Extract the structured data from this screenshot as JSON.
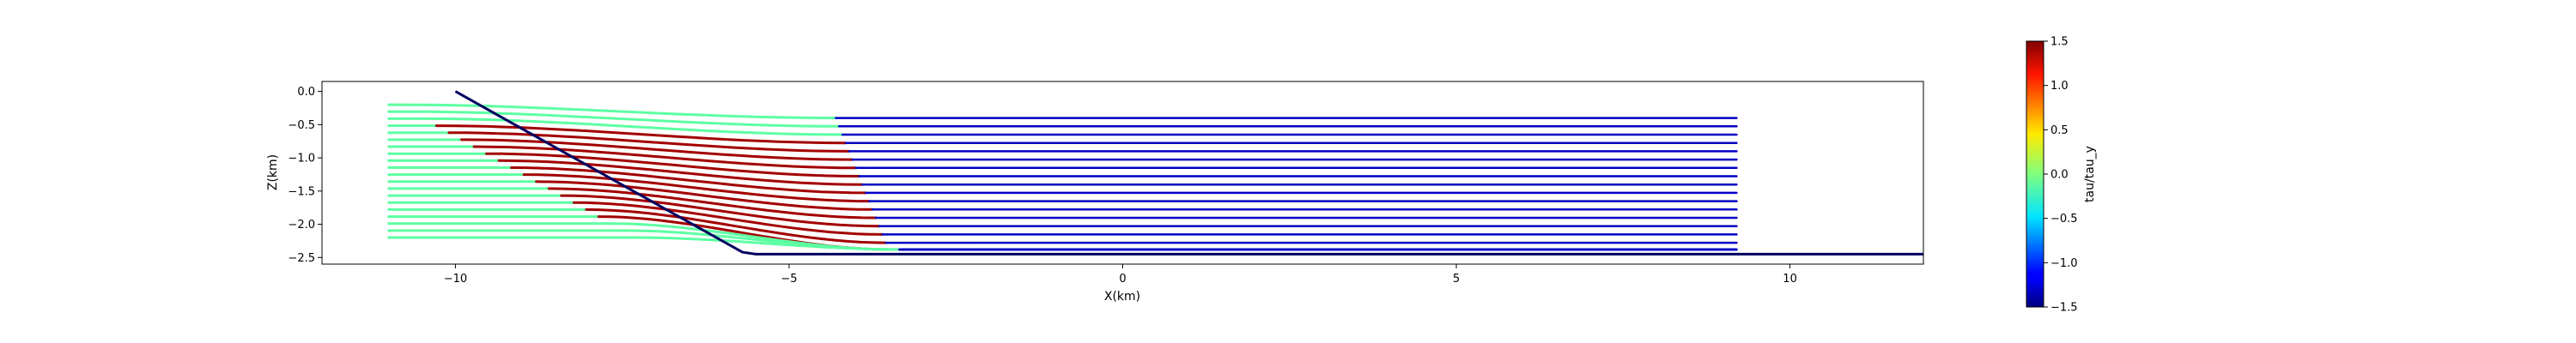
{
  "chart_data": {
    "type": "line",
    "title": "",
    "xlabel": "X(km)",
    "ylabel": "Z(km)",
    "xlim": [
      -12,
      12
    ],
    "ylim": [
      -2.6,
      0.15
    ],
    "xticks": [
      -10,
      -5,
      0,
      5,
      10
    ],
    "xtick_labels": [
      "−10",
      "−5",
      "0",
      "5",
      "10"
    ],
    "yticks": [
      0.0,
      -0.5,
      -1.0,
      -1.5,
      -2.0,
      -2.5
    ],
    "ytick_labels": [
      "0.0",
      "−0.5",
      "−1.0",
      "−1.5",
      "−2.0",
      "−2.5"
    ],
    "grid": false,
    "legend": "none",
    "boundary": {
      "x": [
        -10,
        -5.7,
        -5.5,
        12
      ],
      "y": [
        0.0,
        -2.42,
        -2.45,
        -2.45
      ],
      "color": "#000060"
    },
    "streamlines": {
      "x_start": -11,
      "x_end": 9.2,
      "z_top": -0.2,
      "z_bottom": -2.2,
      "count": 20,
      "upstream_color_value": -0.1,
      "deformation_color_value": 1.4,
      "downstream_color_value": -1.3
    },
    "colorbar": {
      "label": "tau/tau_y",
      "min": -1.5,
      "max": 1.5,
      "ticks": [
        1.5,
        1.0,
        0.5,
        0.0,
        -0.5,
        -1.0,
        -1.5
      ],
      "tick_labels": [
        "1.5",
        "1.0",
        "0.5",
        "0.0",
        "−0.5",
        "−1.0",
        "−1.5"
      ],
      "colormap": "jet"
    }
  }
}
